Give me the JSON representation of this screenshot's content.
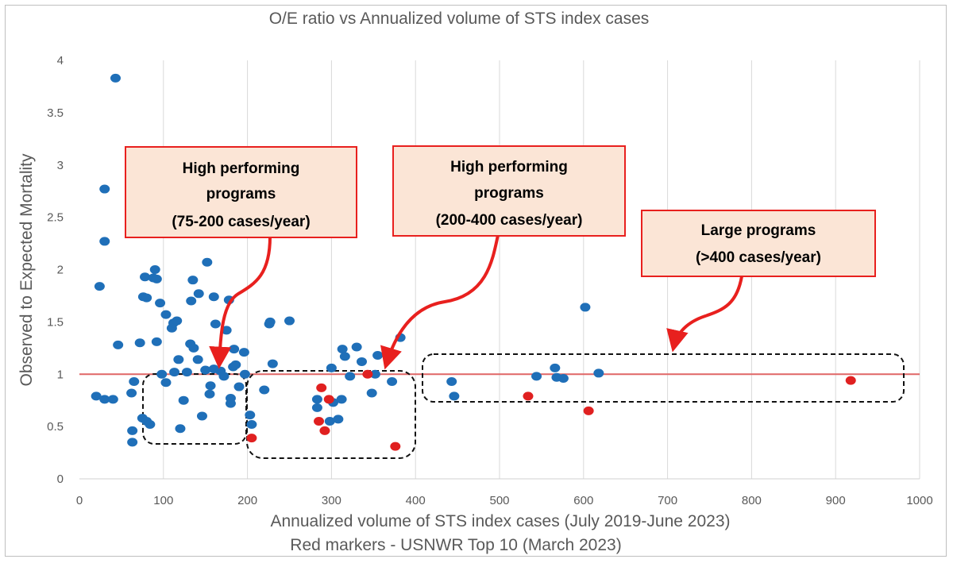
{
  "chart_data": {
    "type": "scatter",
    "title": "O/E ratio vs Annualized volume of STS index cases",
    "xlabel": "Annualized volume of STS index cases (July 2019-June 2023)",
    "xlabel2": "Red markers - USNWR Top 10 (March 2023)",
    "ylabel": "Observed to Expected Mortality",
    "xlim": [
      0,
      1000
    ],
    "ylim": [
      0,
      4
    ],
    "x_ticks": [
      0,
      100,
      200,
      300,
      400,
      500,
      600,
      700,
      800,
      900,
      1000
    ],
    "y_ticks": [
      0,
      0.5,
      1,
      1.5,
      2,
      2.5,
      3,
      3.5,
      4
    ],
    "y_tick_labels": [
      "0",
      "0.5",
      "1",
      "1.5",
      "2",
      "2.5",
      "3",
      "3.5",
      "4"
    ],
    "reference_line": {
      "y": 1,
      "color": "#e06666"
    },
    "series": [
      {
        "name": "Programs",
        "color": "#1f6fb8",
        "points": [
          [
            43,
            3.83
          ],
          [
            30,
            2.77
          ],
          [
            30,
            2.27
          ],
          [
            24,
            1.84
          ],
          [
            46,
            1.28
          ],
          [
            20,
            0.79
          ],
          [
            30,
            0.76
          ],
          [
            40,
            0.76
          ],
          [
            65,
            0.93
          ],
          [
            62,
            0.82
          ],
          [
            63,
            0.46
          ],
          [
            63,
            0.35
          ],
          [
            75,
            0.58
          ],
          [
            80,
            0.55
          ],
          [
            84,
            0.52
          ],
          [
            72,
            1.3
          ],
          [
            76,
            1.74
          ],
          [
            80,
            1.73
          ],
          [
            78,
            1.93
          ],
          [
            88,
            1.92
          ],
          [
            90,
            2.0
          ],
          [
            92,
            1.91
          ],
          [
            92,
            1.31
          ],
          [
            96,
            1.68
          ],
          [
            98,
            1.0
          ],
          [
            103,
            0.92
          ],
          [
            103,
            1.57
          ],
          [
            110,
            1.44
          ],
          [
            112,
            1.49
          ],
          [
            116,
            1.51
          ],
          [
            113,
            1.02
          ],
          [
            118,
            1.14
          ],
          [
            120,
            0.48
          ],
          [
            124,
            0.75
          ],
          [
            128,
            1.02
          ],
          [
            132,
            1.29
          ],
          [
            136,
            1.25
          ],
          [
            133,
            1.7
          ],
          [
            135,
            1.9
          ],
          [
            142,
            1.77
          ],
          [
            141,
            1.14
          ],
          [
            146,
            0.6
          ],
          [
            150,
            1.04
          ],
          [
            152,
            2.07
          ],
          [
            156,
            0.89
          ],
          [
            155,
            0.81
          ],
          [
            160,
            1.05
          ],
          [
            160,
            1.74
          ],
          [
            162,
            1.48
          ],
          [
            168,
            1.03
          ],
          [
            175,
            1.42
          ],
          [
            178,
            1.71
          ],
          [
            172,
            0.98
          ],
          [
            180,
            0.77
          ],
          [
            180,
            0.72
          ],
          [
            183,
            1.07
          ],
          [
            184,
            1.24
          ],
          [
            186,
            1.09
          ],
          [
            190,
            0.88
          ],
          [
            196,
            1.21
          ],
          [
            197,
            1.0
          ],
          [
            203,
            0.61
          ],
          [
            205,
            0.52
          ],
          [
            220,
            0.85
          ],
          [
            226,
            1.48
          ],
          [
            227,
            1.5
          ],
          [
            230,
            1.1
          ],
          [
            250,
            1.51
          ],
          [
            283,
            0.76
          ],
          [
            283,
            0.68
          ],
          [
            298,
            0.55
          ],
          [
            300,
            1.06
          ],
          [
            302,
            0.73
          ],
          [
            308,
            0.57
          ],
          [
            312,
            0.76
          ],
          [
            313,
            1.24
          ],
          [
            316,
            1.17
          ],
          [
            322,
            0.98
          ],
          [
            330,
            1.26
          ],
          [
            336,
            1.12
          ],
          [
            348,
            0.82
          ],
          [
            352,
            1.0
          ],
          [
            355,
            1.18
          ],
          [
            372,
            0.93
          ],
          [
            382,
            1.35
          ],
          [
            443,
            0.93
          ],
          [
            446,
            0.79
          ],
          [
            544,
            0.98
          ],
          [
            566,
            1.06
          ],
          [
            568,
            0.97
          ],
          [
            576,
            0.96
          ],
          [
            602,
            1.64
          ],
          [
            618,
            1.01
          ]
        ]
      },
      {
        "name": "USNWR Top 10",
        "color": "#e02020",
        "points": [
          [
            205,
            0.39
          ],
          [
            285,
            0.55
          ],
          [
            288,
            0.87
          ],
          [
            292,
            0.46
          ],
          [
            297,
            0.76
          ],
          [
            343,
            1.0
          ],
          [
            376,
            0.31
          ],
          [
            534,
            0.79
          ],
          [
            606,
            0.65
          ],
          [
            918,
            0.94
          ]
        ]
      }
    ],
    "annotations": [
      {
        "lines": [
          "High performing",
          "programs",
          "(75-200 cases/year)"
        ]
      },
      {
        "lines": [
          "High performing",
          "programs",
          "(200-400 cases/year)"
        ]
      },
      {
        "lines": [
          "Large programs",
          "(>400 cases/year)"
        ]
      }
    ]
  }
}
